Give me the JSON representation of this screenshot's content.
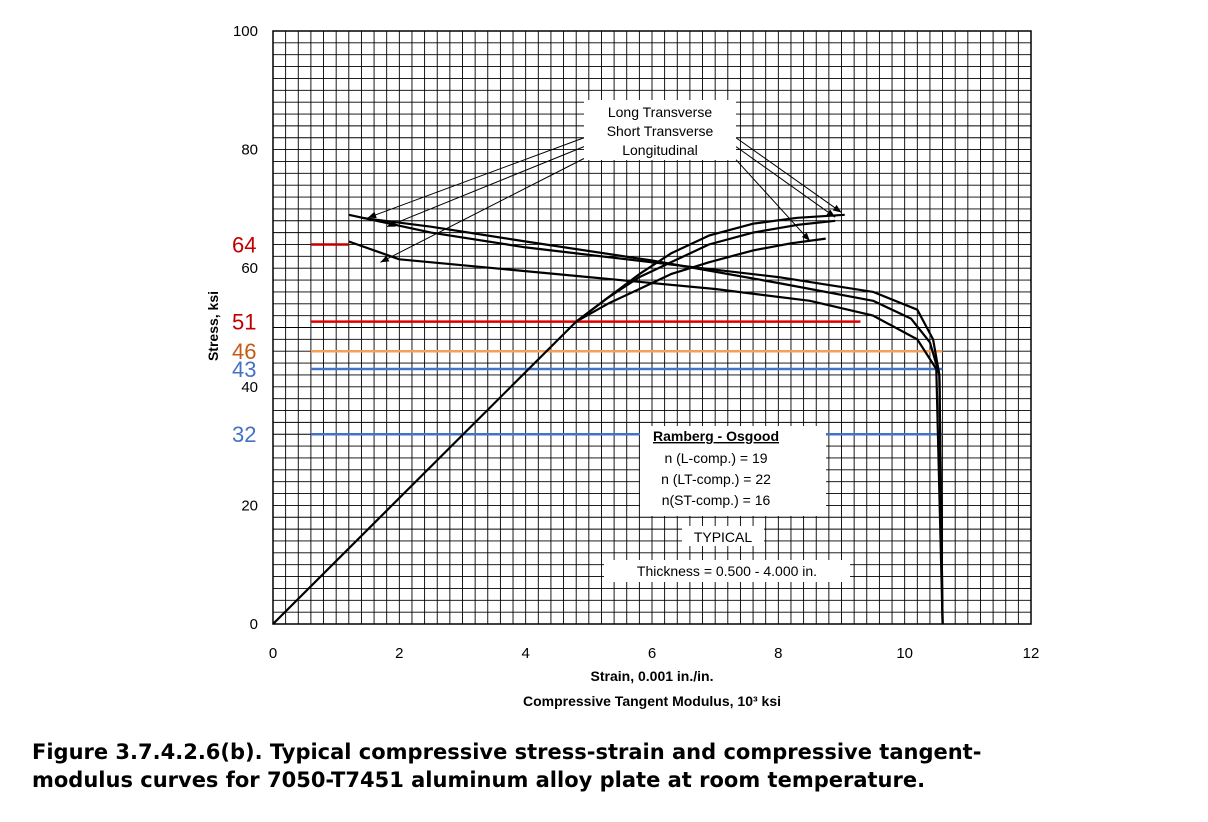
{
  "chart_data": {
    "type": "line",
    "xlabel": "Strain, 0.001 in./in.",
    "xlabel2": "Compressive Tangent Modulus, 10³ ksi",
    "ylabel": "Stress, ksi",
    "xlim": [
      0,
      12
    ],
    "ylim": [
      0,
      100
    ],
    "x_ticks": [
      "0",
      "2",
      "4",
      "6",
      "8",
      "10",
      "12"
    ],
    "y_ticks": [
      "0",
      "20",
      "40",
      "60",
      "80",
      "100"
    ],
    "grid": true,
    "series": [
      {
        "kind": "stress-strain",
        "x": [
          0,
          4.8,
          5.3,
          5.8,
          6.3,
          6.9,
          7.6,
          8.3,
          9.05
        ],
        "y": [
          0,
          51,
          55,
          59,
          62.5,
          65.5,
          67.5,
          68.5,
          69
        ]
      },
      {
        "kind": "stress-strain",
        "x": [
          4.8,
          5.3,
          5.8,
          6.3,
          6.9,
          7.6,
          8.3,
          8.9
        ],
        "y": [
          51,
          55,
          58.5,
          61,
          64,
          66,
          67.3,
          68
        ]
      },
      {
        "kind": "stress-strain",
        "x": [
          4.8,
          5.3,
          5.8,
          6.3,
          6.9,
          7.6,
          8.2,
          8.75
        ],
        "y": [
          51,
          54,
          56.5,
          59,
          61,
          63,
          64.2,
          65
        ]
      },
      {
        "kind": "tangent-modulus",
        "x": [
          1.2,
          2.5,
          4.0,
          6.0,
          8.0,
          9.5,
          10.2,
          10.45,
          10.55,
          10.6
        ],
        "y": [
          69,
          66,
          63.5,
          61,
          58.5,
          56,
          53,
          48,
          42,
          0
        ]
      },
      {
        "kind": "tangent-modulus",
        "x": [
          1.4,
          2.5,
          4.0,
          6.0,
          8.0,
          9.5,
          10.1,
          10.4,
          10.55,
          10.6
        ],
        "y": [
          68.5,
          67,
          64.5,
          61.3,
          57.5,
          54.5,
          51.5,
          47.5,
          42,
          0
        ]
      },
      {
        "kind": "tangent-modulus",
        "x": [
          1.2,
          2.0,
          3.5,
          5.0,
          7.0,
          8.5,
          9.5,
          10.2,
          10.5,
          10.6
        ],
        "y": [
          64.5,
          61.5,
          60,
          58.5,
          56.5,
          54.5,
          52,
          48,
          43,
          0
        ]
      }
    ],
    "reference_lines": [
      {
        "label": "64",
        "y": 64,
        "x": [
          0.6,
          1.2
        ],
        "color": "#c00000"
      },
      {
        "label": "51",
        "y": 51,
        "x": [
          0.6,
          9.3
        ],
        "color": "#e00000"
      },
      {
        "label": "46",
        "y": 46,
        "x": [
          0.6,
          10.6
        ],
        "color": "#f5a05a"
      },
      {
        "label": "43",
        "y": 43,
        "x": [
          0.6,
          10.6
        ],
        "color": "#4472c4"
      },
      {
        "label": "32",
        "y": 32,
        "x": [
          0.6,
          10.6
        ],
        "color": "#4472c4"
      }
    ],
    "reference_label_colors": {
      "64": "#c00000",
      "51": "#c00000",
      "46": "#c55a11",
      "43": "#4472c4",
      "32": "#4472c4"
    },
    "curve_labels": [
      "Long Transverse",
      "Short Transverse",
      "Longitudinal"
    ],
    "ramberg_osgood": {
      "title": "Ramberg - Osgood",
      "lines": [
        "n (L-comp.) = 19",
        "n (LT-comp.) = 22",
        "n(ST-comp.) = 16"
      ]
    },
    "typical_label": "TYPICAL",
    "thickness_label": "Thickness = 0.500 - 4.000 in."
  },
  "caption": {
    "line1": "Figure 3.7.4.2.6(b).  Typical compressive stress-strain and compressive tangent-",
    "line2": "modulus curves for 7050-T7451 aluminum alloy plate at room temperature."
  }
}
